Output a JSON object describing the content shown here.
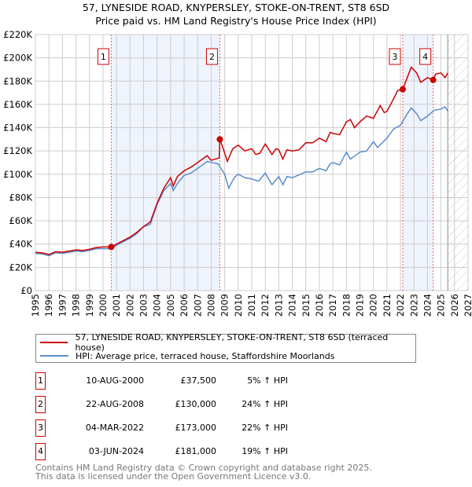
{
  "chart_data": {
    "type": "line",
    "title": "57, LYNESIDE ROAD, KNYPERSLEY, STOKE-ON-TRENT, ST8 6SD",
    "subtitle": "Price paid vs. HM Land Registry's House Price Index (HPI)",
    "xlim": [
      1995,
      2027
    ],
    "ylim": [
      0,
      220000
    ],
    "x_ticks": [
      "1995",
      "1996",
      "1997",
      "1998",
      "1999",
      "2000",
      "2001",
      "2002",
      "2003",
      "2004",
      "2005",
      "2006",
      "2007",
      "2008",
      "2009",
      "2010",
      "2011",
      "2012",
      "2013",
      "2014",
      "2015",
      "2016",
      "2017",
      "2018",
      "2019",
      "2020",
      "2021",
      "2022",
      "2023",
      "2024",
      "2025",
      "2026",
      "2027"
    ],
    "y_ticks": [
      {
        "v": 0,
        "l": "£0"
      },
      {
        "v": 20000,
        "l": "£20K"
      },
      {
        "v": 40000,
        "l": "£40K"
      },
      {
        "v": 60000,
        "l": "£60K"
      },
      {
        "v": 80000,
        "l": "£80K"
      },
      {
        "v": 100000,
        "l": "£100K"
      },
      {
        "v": 120000,
        "l": "£120K"
      },
      {
        "v": 140000,
        "l": "£140K"
      },
      {
        "v": 160000,
        "l": "£160K"
      },
      {
        "v": 180000,
        "l": "£180K"
      },
      {
        "v": 200000,
        "l": "£200K"
      },
      {
        "v": 220000,
        "l": "£220K"
      }
    ],
    "grid": true,
    "forecast_from": 2025.5,
    "series": [
      {
        "name": "57, LYNESIDE ROAD, KNYPERSLEY, STOKE-ON-TRENT, ST8 6SD (terraced house)",
        "color": "#cc0000",
        "points": [
          [
            1995,
            33000
          ],
          [
            1995.5,
            32500
          ],
          [
            1996,
            31000
          ],
          [
            1996.5,
            33500
          ],
          [
            1997,
            33000
          ],
          [
            1997.5,
            34000
          ],
          [
            1998,
            35000
          ],
          [
            1998.5,
            34500
          ],
          [
            1999,
            35500
          ],
          [
            1999.5,
            37000
          ],
          [
            2000,
            37500
          ],
          [
            2000.6,
            37500
          ],
          [
            2001,
            40000
          ],
          [
            2001.5,
            43000
          ],
          [
            2002,
            46000
          ],
          [
            2002.5,
            50000
          ],
          [
            2003,
            55000
          ],
          [
            2003.5,
            59000
          ],
          [
            2004,
            75000
          ],
          [
            2004.5,
            88000
          ],
          [
            2005,
            97000
          ],
          [
            2005.2,
            90000
          ],
          [
            2005.5,
            98000
          ],
          [
            2006,
            103000
          ],
          [
            2006.5,
            106000
          ],
          [
            2007,
            110000
          ],
          [
            2007.7,
            116000
          ],
          [
            2008,
            112000
          ],
          [
            2008.6,
            114000
          ],
          [
            2008.64,
            130000
          ],
          [
            2008.8,
            125000
          ],
          [
            2009.2,
            111000
          ],
          [
            2009.6,
            122000
          ],
          [
            2010,
            125000
          ],
          [
            2010.5,
            120000
          ],
          [
            2011,
            122000
          ],
          [
            2011.3,
            117000
          ],
          [
            2011.6,
            118000
          ],
          [
            2012,
            126000
          ],
          [
            2012.5,
            117000
          ],
          [
            2012.8,
            122000
          ],
          [
            2013,
            121000
          ],
          [
            2013.3,
            113000
          ],
          [
            2013.6,
            121000
          ],
          [
            2014,
            120000
          ],
          [
            2014.5,
            121000
          ],
          [
            2015,
            127000
          ],
          [
            2015.5,
            127000
          ],
          [
            2016,
            131000
          ],
          [
            2016.5,
            128000
          ],
          [
            2016.8,
            136000
          ],
          [
            2017,
            135000
          ],
          [
            2017.5,
            134000
          ],
          [
            2018,
            145000
          ],
          [
            2018.3,
            147000
          ],
          [
            2018.6,
            140000
          ],
          [
            2019,
            145000
          ],
          [
            2019.5,
            150000
          ],
          [
            2020,
            148000
          ],
          [
            2020.5,
            159000
          ],
          [
            2020.8,
            153000
          ],
          [
            2021,
            154000
          ],
          [
            2021.5,
            165000
          ],
          [
            2021.8,
            172000
          ],
          [
            2022.17,
            173000
          ],
          [
            2022.5,
            183000
          ],
          [
            2022.8,
            192000
          ],
          [
            2023.2,
            187000
          ],
          [
            2023.5,
            179000
          ],
          [
            2024,
            183000
          ],
          [
            2024.42,
            181000
          ],
          [
            2024.6,
            186000
          ],
          [
            2025,
            187000
          ],
          [
            2025.3,
            183000
          ],
          [
            2025.5,
            187000
          ]
        ]
      },
      {
        "name": "HPI: Average price, terraced house, Staffordshire Moorlands",
        "color": "#5b8ccc",
        "points": [
          [
            1995,
            32000
          ],
          [
            1995.5,
            31500
          ],
          [
            1996,
            30000
          ],
          [
            1996.5,
            32500
          ],
          [
            1997,
            32000
          ],
          [
            1997.5,
            33000
          ],
          [
            1998,
            34000
          ],
          [
            1998.5,
            33500
          ],
          [
            1999,
            34500
          ],
          [
            1999.5,
            36000
          ],
          [
            2000,
            36000
          ],
          [
            2000.6,
            36000
          ],
          [
            2001,
            39000
          ],
          [
            2001.5,
            42000
          ],
          [
            2002,
            45000
          ],
          [
            2002.5,
            49000
          ],
          [
            2003,
            55000
          ],
          [
            2003.5,
            57000
          ],
          [
            2004,
            74000
          ],
          [
            2004.5,
            86000
          ],
          [
            2005,
            92000
          ],
          [
            2005.2,
            86000
          ],
          [
            2005.5,
            92000
          ],
          [
            2006,
            99000
          ],
          [
            2006.5,
            101000
          ],
          [
            2007,
            105000
          ],
          [
            2007.7,
            111000
          ],
          [
            2008.5,
            109000
          ],
          [
            2009,
            100000
          ],
          [
            2009.3,
            88000
          ],
          [
            2009.7,
            97000
          ],
          [
            2010,
            100000
          ],
          [
            2010.5,
            97000
          ],
          [
            2011,
            96000
          ],
          [
            2011.5,
            94000
          ],
          [
            2012,
            101000
          ],
          [
            2012.5,
            91000
          ],
          [
            2013,
            98000
          ],
          [
            2013.3,
            91000
          ],
          [
            2013.6,
            98000
          ],
          [
            2014,
            97000
          ],
          [
            2015,
            102000
          ],
          [
            2015.5,
            102000
          ],
          [
            2016,
            105000
          ],
          [
            2016.5,
            103000
          ],
          [
            2016.8,
            109000
          ],
          [
            2017,
            110000
          ],
          [
            2017.5,
            108000
          ],
          [
            2018,
            119000
          ],
          [
            2018.3,
            113000
          ],
          [
            2019,
            119000
          ],
          [
            2019.5,
            120000
          ],
          [
            2020,
            128000
          ],
          [
            2020.3,
            123000
          ],
          [
            2021,
            131000
          ],
          [
            2021.5,
            139000
          ],
          [
            2022,
            142000
          ],
          [
            2022.4,
            150000
          ],
          [
            2022.8,
            157000
          ],
          [
            2023.2,
            152000
          ],
          [
            2023.5,
            146000
          ],
          [
            2024,
            150000
          ],
          [
            2024.5,
            155000
          ],
          [
            2025,
            156000
          ],
          [
            2025.3,
            158000
          ],
          [
            2025.5,
            154000
          ]
        ]
      }
    ],
    "sales": [
      {
        "id": "1",
        "x": 2000.61,
        "price": 37500,
        "date": "10-AUG-2000",
        "price_label": "£37,500",
        "hpi": "5% ↑ HPI"
      },
      {
        "id": "2",
        "x": 2008.64,
        "price": 130000,
        "date": "22-AUG-2008",
        "price_label": "£130,000",
        "hpi": "24% ↑ HPI"
      },
      {
        "id": "3",
        "x": 2022.17,
        "price": 173000,
        "date": "04-MAR-2022",
        "price_label": "£173,000",
        "hpi": "22% ↑ HPI"
      },
      {
        "id": "4",
        "x": 2024.42,
        "price": 181000,
        "date": "03-JUN-2024",
        "price_label": "£181,000",
        "hpi": "19% ↑ HPI"
      }
    ]
  },
  "legend": {
    "property": "57, LYNESIDE ROAD, KNYPERSLEY, STOKE-ON-TRENT, ST8 6SD (terraced house)",
    "hpi": "HPI: Average price, terraced house, Staffordshire Moorlands"
  },
  "footer": {
    "line1": "Contains HM Land Registry data © Crown copyright and database right 2025.",
    "line2": "This data is licensed under the Open Government Licence v3.0."
  }
}
